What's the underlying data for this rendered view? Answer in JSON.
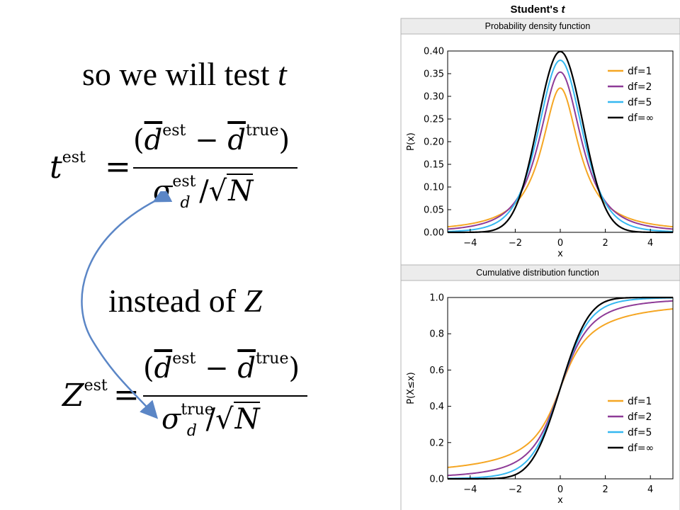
{
  "slide": {
    "line1_prefix": "so we will test ",
    "line1_var": "t",
    "line2_prefix": "instead of ",
    "line2_var": "Z",
    "arrow_color": "#5b86c6"
  },
  "formulas": {
    "t_lhs": "t",
    "t_sup": "est",
    "z_lhs": "Z",
    "z_sup": "est",
    "equals": "=",
    "d_symbol": "d",
    "sup_est": "est",
    "sup_true": "true",
    "minus": "−",
    "sigma": "σ",
    "sub_d": "d",
    "slash": "/",
    "sqrt_symbol": "√",
    "N": "N"
  },
  "chart_data": [
    {
      "type": "line",
      "suptitle": "Student's t",
      "title": "Probability density function",
      "xlabel": "x",
      "ylabel": "P(x)",
      "xlim": [
        -5,
        5
      ],
      "ylim": [
        0,
        0.4
      ],
      "xticks": [
        "−4",
        "−2",
        "0",
        "2",
        "4"
      ],
      "yticks": [
        "0.00",
        "0.05",
        "0.10",
        "0.15",
        "0.20",
        "0.25",
        "0.30",
        "0.35",
        "0.40"
      ],
      "legend_position": "top-right",
      "series": [
        {
          "name": "df=1",
          "color": "#f5a623",
          "peak": 0.318
        },
        {
          "name": "df=2",
          "color": "#8e3b97",
          "peak": 0.354
        },
        {
          "name": "df=5",
          "color": "#35b8f0",
          "peak": 0.38
        },
        {
          "name": "df=∞",
          "color": "#000000",
          "peak": 0.399
        }
      ]
    },
    {
      "type": "line",
      "title": "Cumulative distribution function",
      "xlabel": "x",
      "ylabel": "P(X≤x)",
      "xlim": [
        -5,
        5
      ],
      "ylim": [
        0,
        1
      ],
      "xticks": [
        "−4",
        "−2",
        "0",
        "2",
        "4"
      ],
      "yticks": [
        "0.0",
        "0.2",
        "0.4",
        "0.6",
        "0.8",
        "1.0"
      ],
      "legend_position": "lower-right",
      "series": [
        {
          "name": "df=1",
          "color": "#f5a623"
        },
        {
          "name": "df=2",
          "color": "#8e3b97"
        },
        {
          "name": "df=5",
          "color": "#35b8f0"
        },
        {
          "name": "df=∞",
          "color": "#000000"
        }
      ]
    }
  ]
}
